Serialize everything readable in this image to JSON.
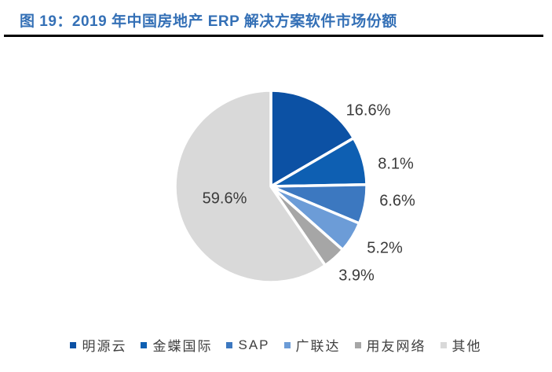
{
  "title": {
    "text": "图 19：2019 年中国房地产 ERP 解决方案软件市场份额"
  },
  "chart_data": {
    "type": "pie",
    "title": "2019 年中国房地产 ERP 解决方案软件市场份额",
    "categories": [
      "明源云",
      "金蝶国际",
      "SAP",
      "广联达",
      "用友网络",
      "其他"
    ],
    "values": [
      16.6,
      8.1,
      6.6,
      5.2,
      3.9,
      59.6
    ],
    "display_labels": [
      "16.6%",
      "8.1%",
      "6.6%",
      "5.2%",
      "3.9%",
      "59.6%"
    ],
    "colors": [
      "#0C51A4",
      "#0E5FB2",
      "#3C78C0",
      "#6C9CD7",
      "#A6A6A6",
      "#D9D9D9"
    ],
    "start_angle": "12 o'clock",
    "direction": "clockwise",
    "legend_position": "bottom",
    "title_color": "#3470B6",
    "label_color": "#3b3b3b"
  }
}
